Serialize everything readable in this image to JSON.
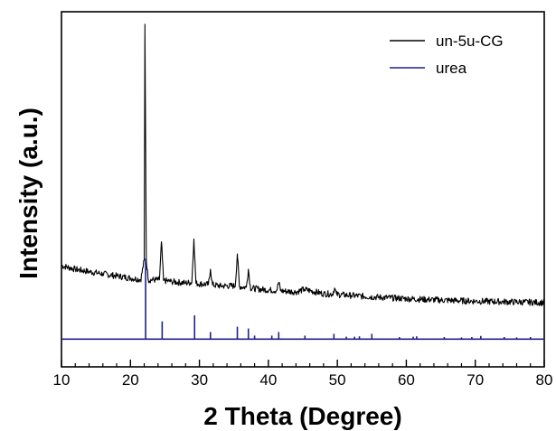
{
  "chart_data": {
    "type": "line",
    "title": "",
    "xlabel": "2 Theta (Degree)",
    "ylabel": "Intensity (a.u.)",
    "xlim": [
      10,
      80
    ],
    "x_ticks": [
      10,
      20,
      30,
      40,
      50,
      60,
      70,
      80
    ],
    "x_tick_labels": [
      "10",
      "20",
      "30",
      "40",
      "50",
      "60",
      "70",
      "80"
    ],
    "x_minor_tick_step": 2,
    "y_tick_labels": false,
    "grid": false,
    "legend_position": "top-right",
    "ylim": [
      0,
      1
    ],
    "series": [
      {
        "name": "un-5u-CG",
        "color": "#000000",
        "style": "line",
        "x": [
          10,
          12,
          14,
          16,
          18,
          20,
          21.5,
          22.0,
          22.1,
          22.3,
          22.6,
          24.2,
          24.5,
          24.8,
          26,
          28,
          28.9,
          29.2,
          29.5,
          31.3,
          31.6,
          31.9,
          33,
          35.2,
          35.5,
          35.8,
          36.8,
          37.1,
          37.4,
          39,
          41.2,
          41.5,
          41.8,
          44,
          45.2,
          48,
          49.3,
          49.6,
          49.9,
          52,
          55,
          60,
          65,
          70,
          75,
          80
        ],
        "y": [
          0.285,
          0.275,
          0.268,
          0.262,
          0.256,
          0.25,
          0.246,
          0.3,
          0.965,
          0.3,
          0.245,
          0.245,
          0.352,
          0.243,
          0.24,
          0.236,
          0.238,
          0.36,
          0.235,
          0.232,
          0.275,
          0.231,
          0.228,
          0.228,
          0.318,
          0.226,
          0.224,
          0.275,
          0.222,
          0.218,
          0.215,
          0.238,
          0.214,
          0.211,
          0.218,
          0.206,
          0.205,
          0.222,
          0.204,
          0.201,
          0.197,
          0.192,
          0.188,
          0.185,
          0.183,
          0.181
        ]
      },
      {
        "name": "urea",
        "color": "#1f1f8f",
        "style": "sticks",
        "baseline": 0.078,
        "x": [
          22.2,
          24.6,
          29.3,
          31.6,
          35.5,
          37.1,
          38.0,
          40.5,
          41.5,
          45.3,
          49.5,
          51.3,
          52.5,
          53.2,
          55.0,
          59.0,
          61.0,
          61.5,
          65.5,
          68.0,
          69.5,
          70.8,
          74.2,
          76.0,
          78.0
        ],
        "y": [
          0.305,
          0.128,
          0.145,
          0.098,
          0.113,
          0.108,
          0.088,
          0.088,
          0.098,
          0.088,
          0.093,
          0.085,
          0.085,
          0.086,
          0.093,
          0.084,
          0.085,
          0.086,
          0.084,
          0.083,
          0.084,
          0.087,
          0.084,
          0.083,
          0.084
        ]
      }
    ]
  }
}
